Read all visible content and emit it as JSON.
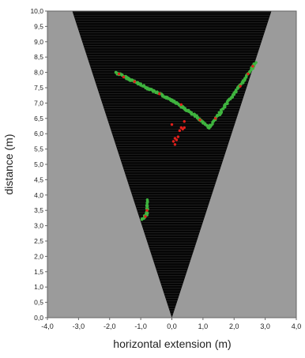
{
  "chart_data": {
    "type": "scatter",
    "title": "",
    "xlabel": "horizontal extension (m)",
    "ylabel": "distance (m)",
    "xlim": [
      -4,
      4
    ],
    "ylim": [
      0,
      10
    ],
    "x_ticks": [
      "-4,0",
      "-3,0",
      "-2,0",
      "-1,0",
      "0,0",
      "1,0",
      "2,0",
      "3,0",
      "4,0"
    ],
    "y_ticks": [
      "0,0",
      "0,5",
      "1,0",
      "1,5",
      "2,0",
      "2,5",
      "3,0",
      "3,5",
      "4,0",
      "4,5",
      "5,0",
      "5,5",
      "6,0",
      "6,5",
      "7,0",
      "7,5",
      "8,0",
      "8,5",
      "9,0",
      "9,5",
      "10,0"
    ],
    "field_of_view": {
      "apex": [
        0,
        0
      ],
      "top_left": [
        -3.2,
        10
      ],
      "top_right": [
        3.2,
        10
      ],
      "inside_color": "#050505",
      "outside_color": "#9b9b9b",
      "inside_line_color": "#2e2e2e"
    },
    "series": [
      {
        "color": "#3fb43f",
        "segments": [
          {
            "from": [
              -1.8,
              8.0
            ],
            "to": [
              -0.9,
              7.55
            ],
            "n": 40
          },
          {
            "from": [
              -0.9,
              7.55
            ],
            "to": [
              0.0,
              7.1
            ],
            "n": 40
          },
          {
            "from": [
              0.0,
              7.1
            ],
            "to": [
              0.8,
              6.55
            ],
            "n": 40
          },
          {
            "from": [
              0.8,
              6.55
            ],
            "to": [
              1.2,
              6.2
            ],
            "n": 25
          },
          {
            "from": [
              1.2,
              6.2
            ],
            "to": [
              2.0,
              7.3
            ],
            "n": 45
          },
          {
            "from": [
              2.0,
              7.3
            ],
            "to": [
              2.7,
              8.3
            ],
            "n": 40
          },
          {
            "from": [
              -0.95,
              3.2
            ],
            "to": [
              -0.8,
              3.4
            ],
            "n": 12
          },
          {
            "from": [
              -0.8,
              3.4
            ],
            "to": [
              -0.8,
              3.85
            ],
            "n": 12
          }
        ]
      },
      {
        "color": "#e0201c",
        "points": [
          [
            -1.7,
            7.95
          ],
          [
            -1.55,
            7.85
          ],
          [
            -1.2,
            7.7
          ],
          [
            -0.4,
            7.3
          ],
          [
            0.3,
            6.95
          ],
          [
            0.9,
            6.45
          ],
          [
            1.4,
            6.5
          ],
          [
            2.2,
            7.55
          ],
          [
            2.45,
            7.95
          ],
          [
            2.6,
            8.2
          ],
          [
            0.0,
            6.3
          ],
          [
            0.4,
            6.4
          ],
          [
            0.05,
            5.75
          ],
          [
            0.1,
            5.65
          ],
          [
            0.15,
            5.8
          ],
          [
            0.2,
            5.9
          ],
          [
            0.1,
            5.85
          ],
          [
            0.25,
            6.1
          ],
          [
            0.3,
            6.2
          ],
          [
            0.35,
            6.15
          ],
          [
            0.4,
            6.2
          ],
          [
            -0.85,
            3.3
          ],
          [
            -0.8,
            3.5
          ]
        ]
      }
    ]
  }
}
